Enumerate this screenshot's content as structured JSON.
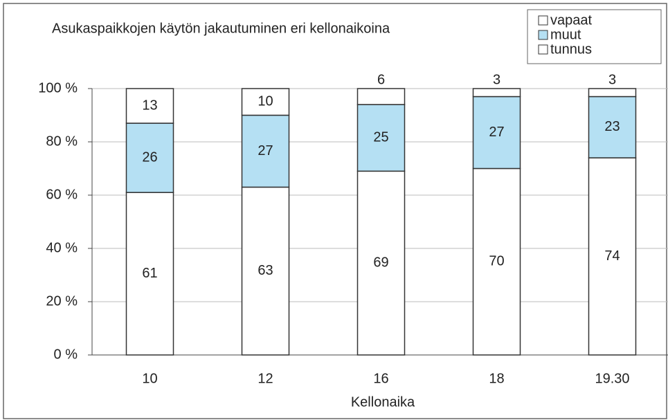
{
  "chart_data": {
    "type": "stacked_bar",
    "title": "Asukaspaikkojen käytön jakautuminen eri kellonaikoina",
    "x_label": "Kellonaika",
    "categories": [
      "10",
      "12",
      "16",
      "18",
      "19.30"
    ],
    "series": [
      {
        "name": "tunnus",
        "color": "#ffffff",
        "values": [
          61,
          63,
          69,
          70,
          74
        ]
      },
      {
        "name": "muut",
        "color": "#b5e0f3",
        "values": [
          26,
          27,
          25,
          27,
          23
        ]
      },
      {
        "name": "vapaat",
        "color": "#ffffff",
        "values": [
          13,
          10,
          6,
          3,
          3
        ]
      }
    ],
    "ylim": [
      0,
      100
    ],
    "yticks": [
      {
        "value": 0,
        "label": "0 %"
      },
      {
        "value": 20,
        "label": "20 %"
      },
      {
        "value": 40,
        "label": "40 %"
      },
      {
        "value": 60,
        "label": "60 %"
      },
      {
        "value": 80,
        "label": "80 %"
      },
      {
        "value": 100,
        "label": "100 %"
      }
    ],
    "grid": true
  }
}
